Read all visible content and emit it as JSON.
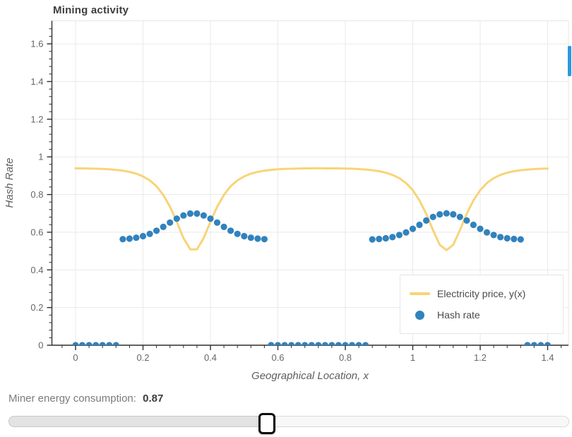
{
  "chart_data": {
    "type": "mixed",
    "title": "Mining activity",
    "xlabel": "Geographical Location, x",
    "ylabel": "Hash Rate",
    "x_range": [
      -0.07,
      1.46
    ],
    "y_range": [
      0,
      1.72
    ],
    "x_ticks": [
      0,
      0.2,
      0.4,
      0.6,
      0.8,
      1,
      1.2,
      1.4
    ],
    "x_tick_labels": [
      "0",
      "0.2",
      "0.4",
      "0.6",
      "0.8",
      "1",
      "1.2",
      "1.4"
    ],
    "y_ticks": [
      0,
      0.2,
      0.4,
      0.6,
      0.8,
      1,
      1.2,
      1.4,
      1.6
    ],
    "y_tick_labels": [
      "0",
      "0.2",
      "0.4",
      "0.6",
      "0.8",
      "1",
      "1.2",
      "1.4",
      "1.6"
    ],
    "minor_tick_step": 0.04,
    "grid": true,
    "legend_position": "bottom-right",
    "x": [
      0,
      0.02,
      0.04,
      0.06,
      0.08,
      0.1,
      0.12,
      0.14,
      0.16,
      0.18,
      0.2,
      0.22,
      0.24,
      0.26,
      0.28,
      0.3,
      0.32,
      0.34,
      0.36,
      0.38,
      0.4,
      0.42,
      0.44,
      0.46,
      0.48,
      0.5,
      0.52,
      0.54,
      0.56,
      0.58,
      0.6,
      0.62,
      0.64,
      0.66,
      0.68,
      0.7,
      0.72,
      0.74,
      0.76,
      0.78,
      0.8,
      0.82,
      0.84,
      0.86,
      0.88,
      0.9,
      0.92,
      0.94,
      0.96,
      0.98,
      1,
      1.02,
      1.04,
      1.06,
      1.08,
      1.1,
      1.12,
      1.14,
      1.16,
      1.18,
      1.2,
      1.22,
      1.24,
      1.26,
      1.28,
      1.3,
      1.32,
      1.34,
      1.36,
      1.38,
      1.4
    ],
    "series": [
      {
        "name": "Electricity price, y(x)",
        "type": "line",
        "color": "#f8d478",
        "values": [
          0.939,
          0.939,
          0.938,
          0.937,
          0.936,
          0.934,
          0.931,
          0.927,
          0.92,
          0.911,
          0.896,
          0.875,
          0.844,
          0.798,
          0.735,
          0.655,
          0.569,
          0.509,
          0.509,
          0.569,
          0.655,
          0.735,
          0.798,
          0.844,
          0.875,
          0.896,
          0.911,
          0.92,
          0.927,
          0.931,
          0.934,
          0.936,
          0.937,
          0.938,
          0.939,
          0.939,
          0.94,
          0.939,
          0.939,
          0.939,
          0.938,
          0.937,
          0.935,
          0.933,
          0.929,
          0.924,
          0.916,
          0.904,
          0.887,
          0.861,
          0.823,
          0.769,
          0.697,
          0.611,
          0.533,
          0.505,
          0.533,
          0.611,
          0.697,
          0.769,
          0.823,
          0.861,
          0.887,
          0.904,
          0.916,
          0.924,
          0.929,
          0.933,
          0.935,
          0.937,
          0.938
        ]
      },
      {
        "name": "Hash rate",
        "type": "scatter",
        "color": "#3182bd",
        "values": [
          0,
          0,
          0,
          0,
          0,
          0,
          0,
          0.563,
          0.566,
          0.571,
          0.579,
          0.591,
          0.608,
          0.628,
          0.651,
          0.672,
          0.689,
          0.699,
          0.699,
          0.689,
          0.672,
          0.651,
          0.628,
          0.608,
          0.591,
          0.579,
          0.571,
          0.566,
          0.563,
          0,
          0,
          0,
          0,
          0,
          0,
          0,
          0,
          0,
          0,
          0,
          0,
          0,
          0,
          0,
          0.562,
          0.564,
          0.568,
          0.574,
          0.585,
          0.599,
          0.618,
          0.639,
          0.662,
          0.681,
          0.695,
          0.7,
          0.695,
          0.681,
          0.662,
          0.639,
          0.618,
          0.599,
          0.585,
          0.574,
          0.568,
          0.564,
          0.562,
          0,
          0,
          0,
          0
        ]
      }
    ],
    "colors": {
      "grid": "#e9e9e9",
      "frame_border": "#e5e5e5",
      "axis": "#2f2f2f",
      "tick_label": "#666666",
      "title": "#3e3e3e",
      "axis_label": "#5e5e5e"
    }
  },
  "legend": {
    "items": [
      {
        "label": "Electricity price, y(x)",
        "swatch": "line"
      },
      {
        "label": "Hash rate",
        "swatch": "circle"
      }
    ]
  },
  "slider": {
    "label": "Miner energy consumption:",
    "value": "0.87"
  }
}
